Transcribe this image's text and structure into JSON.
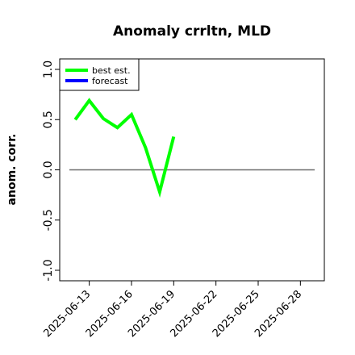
{
  "chart_data": {
    "type": "line",
    "title": "Anomaly crrltn, MLD",
    "xlabel": "",
    "ylabel": "anom. corr.",
    "ylim": [
      -1.0,
      1.0
    ],
    "yticks": [
      "-1.0",
      "-0.5",
      "0.0",
      "0.5",
      "1.0"
    ],
    "yticks_values": [
      -1.0,
      -0.5,
      0.0,
      0.5,
      1.0
    ],
    "xticks": [
      "2025-06-13",
      "2025-06-16",
      "2025-06-19",
      "2025-06-22",
      "2025-06-25",
      "2025-06-28"
    ],
    "xticks_days": [
      13,
      16,
      19,
      22,
      25,
      28
    ],
    "highlighted_xtick": "2025-06-19",
    "highlight_color": "#228b22",
    "xlim_days": [
      10.9,
      29.7
    ],
    "reference_line": 0.0,
    "grid": false,
    "legend_position": "top-left",
    "series": [
      {
        "name": "best est.",
        "color": "#00ff00",
        "x": [
          "2025-06-12",
          "2025-06-13",
          "2025-06-14",
          "2025-06-15",
          "2025-06-16",
          "2025-06-17",
          "2025-06-18",
          "2025-06-19"
        ],
        "x_days": [
          12,
          13,
          14,
          15,
          16,
          17,
          18,
          19
        ],
        "values": [
          0.5,
          0.69,
          0.51,
          0.42,
          0.55,
          0.22,
          -0.22,
          0.33
        ]
      },
      {
        "name": "forecast",
        "color": "#0000ff",
        "x": [],
        "x_days": [],
        "values": []
      }
    ]
  }
}
